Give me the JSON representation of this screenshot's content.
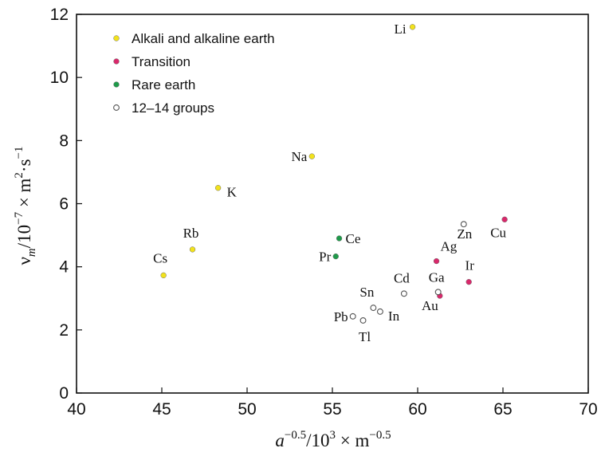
{
  "chart_data": {
    "type": "scatter",
    "xlabel": {
      "base": "a",
      "exp1": "−0.5",
      "mid": "/10",
      "exp2": "3",
      "mid2": " × m",
      "exp3": "−0.5"
    },
    "ylabel": {
      "base": "ν",
      "sub": "m",
      "mid": "/10",
      "exp1": "−7",
      "mid2": " × m",
      "exp2": "2",
      "mid3": "·s",
      "exp3": "−1"
    },
    "xlim": [
      40,
      70
    ],
    "ylim": [
      0,
      12
    ],
    "xticks": [
      40,
      45,
      50,
      55,
      60,
      65,
      70
    ],
    "yticks": [
      0,
      2,
      4,
      6,
      8,
      10,
      12
    ],
    "legend_position": "top-left",
    "series": [
      {
        "name": "Alkali and alkaline earth",
        "marker": "filled",
        "color": "#f2e21c",
        "points": [
          {
            "label": "Li",
            "x": 59.7,
            "y": 11.6
          },
          {
            "label": "Na",
            "x": 53.8,
            "y": 7.5
          },
          {
            "label": "K",
            "x": 48.3,
            "y": 6.5
          },
          {
            "label": "Rb",
            "x": 46.8,
            "y": 4.55
          },
          {
            "label": "Cs",
            "x": 45.1,
            "y": 3.73
          }
        ]
      },
      {
        "name": "Transition",
        "marker": "filled",
        "color": "#d9286b",
        "points": [
          {
            "label": "Cu",
            "x": 65.1,
            "y": 5.5
          },
          {
            "label": "Ag",
            "x": 61.1,
            "y": 4.18
          },
          {
            "label": "Ir",
            "x": 63.0,
            "y": 3.52
          },
          {
            "label": "Au",
            "x": 61.3,
            "y": 3.08
          }
        ]
      },
      {
        "name": "Rare earth",
        "marker": "filled",
        "color": "#1f9a4a",
        "points": [
          {
            "label": "Ce",
            "x": 55.4,
            "y": 4.9
          },
          {
            "label": "Pr",
            "x": 55.2,
            "y": 4.33
          }
        ]
      },
      {
        "name": "12–14 groups",
        "marker": "open",
        "color": "#555555",
        "points": [
          {
            "label": "Zn",
            "x": 62.7,
            "y": 5.35
          },
          {
            "label": "Cd",
            "x": 59.2,
            "y": 3.15
          },
          {
            "label": "Ga",
            "x": 61.2,
            "y": 3.2
          },
          {
            "label": "Sn",
            "x": 57.4,
            "y": 2.7
          },
          {
            "label": "In",
            "x": 57.8,
            "y": 2.58
          },
          {
            "label": "Pb",
            "x": 56.2,
            "y": 2.43
          },
          {
            "label": "Tl",
            "x": 56.8,
            "y": 2.3
          }
        ]
      }
    ]
  }
}
